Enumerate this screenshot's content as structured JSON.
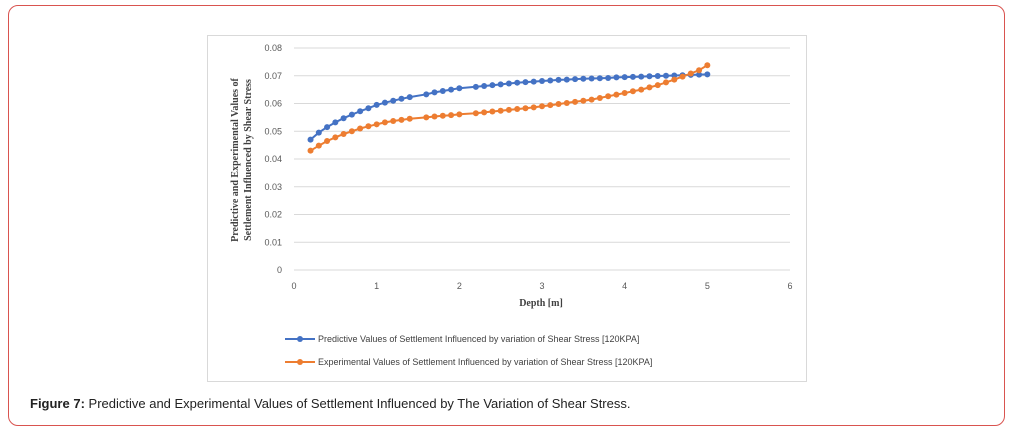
{
  "caption": {
    "label": "Figure 7:",
    "text": " Predictive and Experimental Values of Settlement Influenced by The Variation of Shear Stress."
  },
  "chart_data": {
    "type": "line",
    "title": "",
    "xlabel": "Depth  [m]",
    "ylabel_line1": "Predictive  and  Experimental  Values  of",
    "ylabel_line2": "Settlement Influenced  by  Shear Stress",
    "xlim": [
      0,
      6
    ],
    "ylim": [
      0,
      0.08
    ],
    "xticks": [
      "0",
      "1",
      "2",
      "3",
      "4",
      "5",
      "6"
    ],
    "yticks": [
      "0",
      "0.01",
      "0.02",
      "0.03",
      "0.04",
      "0.05",
      "0.06",
      "0.07",
      "0.08"
    ],
    "grid": true,
    "legend_position": "bottom",
    "series": [
      {
        "name": "Predictive Values of Settlement Influenced by variation of Shear Stress [120KPA]",
        "color": "#4472c4",
        "x": [
          0.2,
          0.3,
          0.4,
          0.5,
          0.6,
          0.7,
          0.8,
          0.9,
          1.0,
          1.1,
          1.2,
          1.3,
          1.4,
          1.6,
          1.7,
          1.8,
          1.9,
          2.0,
          2.2,
          2.3,
          2.4,
          2.5,
          2.6,
          2.7,
          2.8,
          2.9,
          3.0,
          3.1,
          3.2,
          3.3,
          3.4,
          3.5,
          3.6,
          3.7,
          3.8,
          3.9,
          4.0,
          4.1,
          4.2,
          4.3,
          4.4,
          4.5,
          4.6,
          4.7,
          4.8,
          4.9,
          5.0
        ],
        "y": [
          0.047,
          0.0495,
          0.0515,
          0.0532,
          0.0547,
          0.056,
          0.0572,
          0.0583,
          0.0595,
          0.0603,
          0.061,
          0.0617,
          0.0623,
          0.0633,
          0.064,
          0.0645,
          0.065,
          0.0655,
          0.066,
          0.0663,
          0.0666,
          0.0669,
          0.0672,
          0.0675,
          0.0677,
          0.0679,
          0.0681,
          0.0683,
          0.0685,
          0.0686,
          0.0688,
          0.0689,
          0.069,
          0.0691,
          0.0692,
          0.0694,
          0.0695,
          0.0696,
          0.0697,
          0.0698,
          0.0699,
          0.07,
          0.0701,
          0.0702,
          0.0703,
          0.0704,
          0.0705
        ]
      },
      {
        "name": "Experimental  Values of Settlement Influenced by variation of Shear Stress [120KPA]",
        "color": "#ed7d31",
        "x": [
          0.2,
          0.3,
          0.4,
          0.5,
          0.6,
          0.7,
          0.8,
          0.9,
          1.0,
          1.1,
          1.2,
          1.3,
          1.4,
          1.6,
          1.7,
          1.8,
          1.9,
          2.0,
          2.2,
          2.3,
          2.4,
          2.5,
          2.6,
          2.7,
          2.8,
          2.9,
          3.0,
          3.1,
          3.2,
          3.3,
          3.4,
          3.5,
          3.6,
          3.7,
          3.8,
          3.9,
          4.0,
          4.1,
          4.2,
          4.3,
          4.4,
          4.5,
          4.6,
          4.7,
          4.8,
          4.9,
          5.0
        ],
        "y": [
          0.043,
          0.0448,
          0.0465,
          0.0478,
          0.049,
          0.05,
          0.051,
          0.0518,
          0.0525,
          0.0532,
          0.0537,
          0.0541,
          0.0545,
          0.055,
          0.0553,
          0.0556,
          0.0558,
          0.0561,
          0.0565,
          0.0568,
          0.0571,
          0.0574,
          0.0577,
          0.058,
          0.0583,
          0.0586,
          0.059,
          0.0594,
          0.0598,
          0.0602,
          0.0606,
          0.061,
          0.0614,
          0.062,
          0.0626,
          0.0632,
          0.0638,
          0.0644,
          0.065,
          0.0658,
          0.0666,
          0.0676,
          0.0686,
          0.0697,
          0.0708,
          0.072,
          0.0738
        ]
      }
    ]
  }
}
